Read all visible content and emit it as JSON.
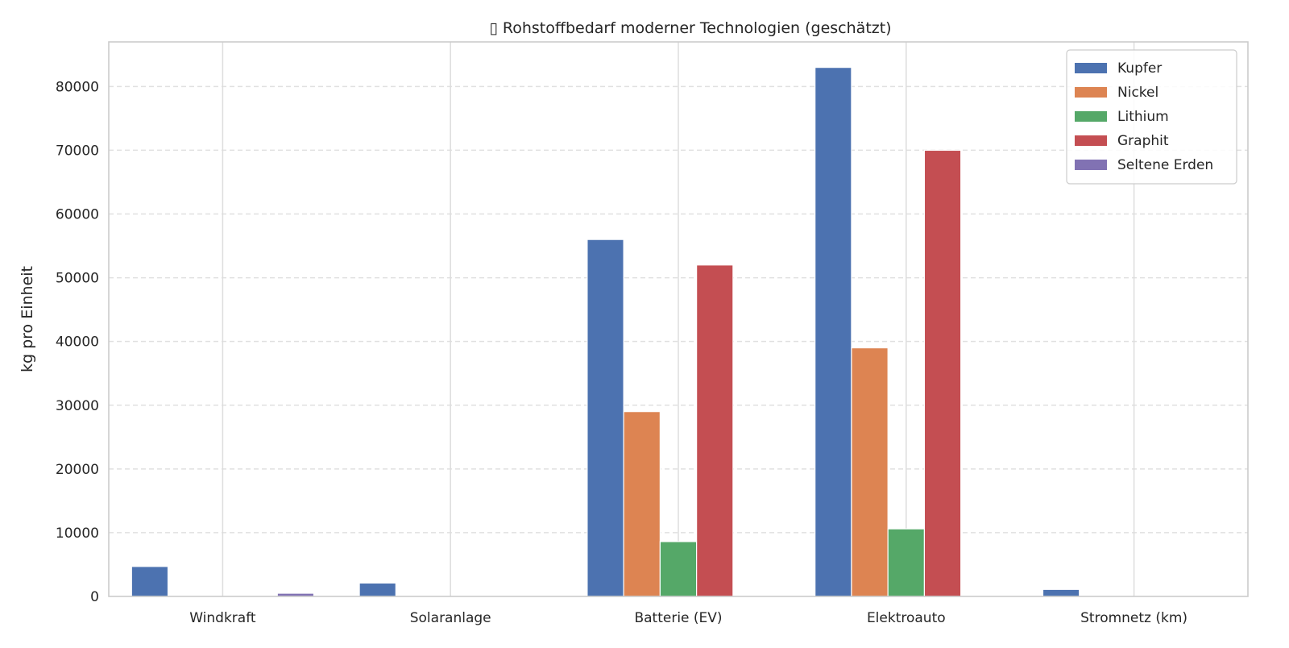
{
  "chart_data": {
    "type": "bar",
    "title": "▯ Rohstoffbedarf moderner Technologien (geschätzt)",
    "xlabel": "",
    "ylabel": "kg pro Einheit",
    "categories": [
      "Windkraft",
      "Solaranlage",
      "Batterie (EV)",
      "Elektroauto",
      "Stromnetz (km)"
    ],
    "series": [
      {
        "name": "Kupfer",
        "color": "#4c72b0",
        "values": [
          4700,
          2100,
          56000,
          83000,
          1100
        ]
      },
      {
        "name": "Nickel",
        "color": "#dd8452",
        "values": [
          0,
          0,
          29000,
          39000,
          0
        ]
      },
      {
        "name": "Lithium",
        "color": "#55a868",
        "values": [
          0,
          0,
          8600,
          10600,
          0
        ]
      },
      {
        "name": "Graphit",
        "color": "#c44e52",
        "values": [
          0,
          0,
          52000,
          70000,
          0
        ]
      },
      {
        "name": "Seltene Erden",
        "color": "#8172b3",
        "values": [
          500,
          0,
          0,
          0,
          0
        ]
      }
    ],
    "ylim": [
      0,
      87000
    ],
    "yticks": [
      0,
      10000,
      20000,
      30000,
      40000,
      50000,
      60000,
      70000,
      80000
    ],
    "ytick_labels": [
      "0",
      "10000",
      "20000",
      "30000",
      "40000",
      "50000",
      "60000",
      "70000",
      "80000"
    ],
    "grid": true,
    "legend": "top-right"
  }
}
